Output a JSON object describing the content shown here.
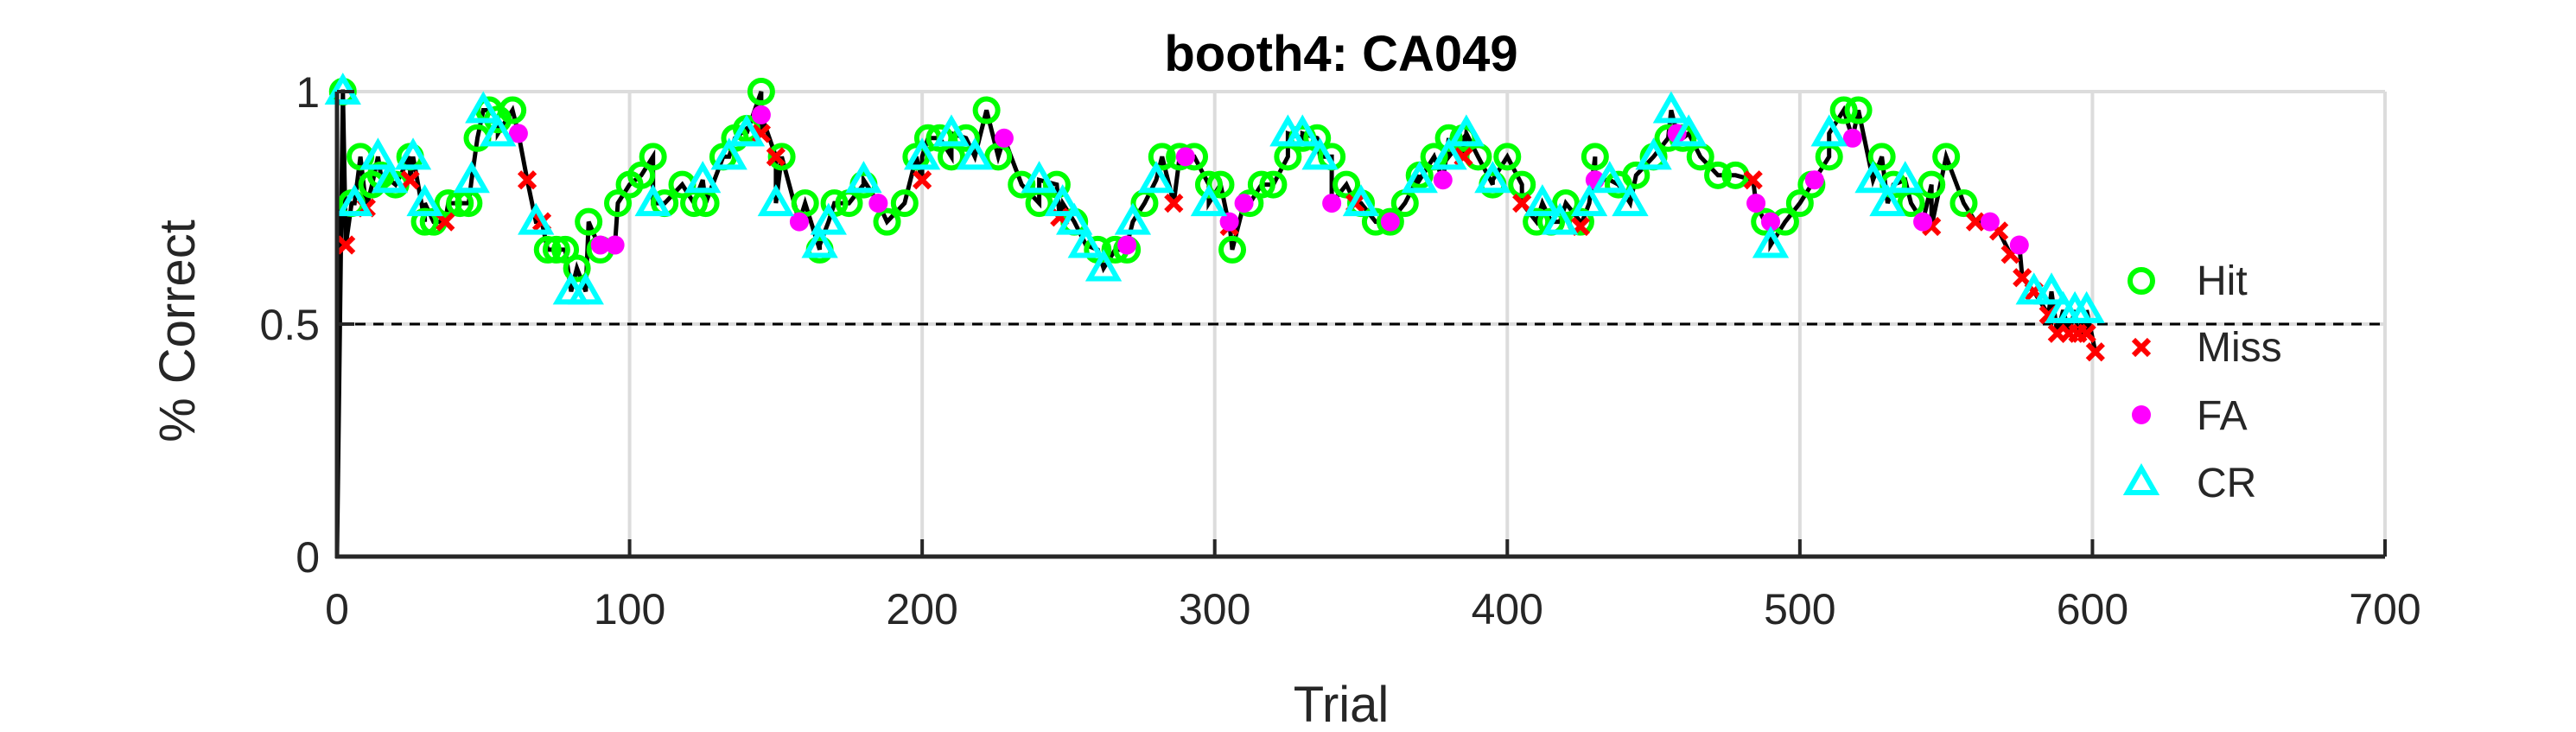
{
  "chart_data": {
    "type": "scatter",
    "title": "booth4: CA049",
    "xlabel": "Trial",
    "ylabel": "% Correct",
    "xlim": [
      0,
      700
    ],
    "ylim": [
      0,
      1
    ],
    "xticks": [
      0,
      100,
      200,
      300,
      400,
      500,
      600,
      700
    ],
    "yticks": [
      0,
      0.5,
      1
    ],
    "xtick_labels": [
      "0",
      "100",
      "200",
      "300",
      "400",
      "500",
      "600",
      "700"
    ],
    "ytick_labels": [
      "0",
      "0.5",
      "1"
    ],
    "grid": true,
    "legend_position": "right",
    "reference_line": {
      "y": 0.5,
      "style": "dashed",
      "color": "#000000"
    },
    "line_color": "#000000",
    "series": [
      {
        "name": "Hit",
        "marker": "circle-open",
        "color": "#00ff00",
        "x": [
          2,
          5,
          8,
          12,
          15,
          20,
          25,
          30,
          33,
          38,
          42,
          45,
          48,
          52,
          55,
          60,
          72,
          75,
          78,
          82,
          86,
          90,
          96,
          100,
          104,
          108,
          112,
          118,
          122,
          126,
          132,
          136,
          140,
          145,
          152,
          160,
          165,
          170,
          175,
          180,
          188,
          194,
          198,
          202,
          206,
          210,
          215,
          222,
          226,
          234,
          240,
          246,
          252,
          260,
          266,
          270,
          276,
          282,
          288,
          293,
          298,
          302,
          306,
          312,
          316,
          320,
          325,
          330,
          335,
          340,
          345,
          350,
          355,
          360,
          365,
          370,
          375,
          380,
          385,
          390,
          395,
          400,
          405,
          410,
          415,
          420,
          425,
          430,
          438,
          444,
          450,
          455,
          460,
          466,
          472,
          478,
          488,
          495,
          500,
          504,
          510,
          515,
          520,
          528,
          532,
          538,
          545,
          550,
          556
        ],
        "y": [
          1.0,
          0.76,
          0.86,
          0.8,
          0.82,
          0.8,
          0.86,
          0.72,
          0.72,
          0.76,
          0.76,
          0.76,
          0.9,
          0.96,
          0.94,
          0.96,
          0.66,
          0.66,
          0.66,
          0.62,
          0.72,
          0.66,
          0.76,
          0.8,
          0.82,
          0.86,
          0.76,
          0.8,
          0.76,
          0.76,
          0.86,
          0.9,
          0.92,
          1.0,
          0.86,
          0.76,
          0.66,
          0.76,
          0.76,
          0.8,
          0.72,
          0.76,
          0.86,
          0.9,
          0.9,
          0.86,
          0.9,
          0.96,
          0.86,
          0.8,
          0.76,
          0.8,
          0.72,
          0.66,
          0.66,
          0.66,
          0.76,
          0.86,
          0.86,
          0.86,
          0.8,
          0.8,
          0.66,
          0.76,
          0.8,
          0.8,
          0.86,
          0.9,
          0.9,
          0.86,
          0.8,
          0.76,
          0.72,
          0.72,
          0.76,
          0.82,
          0.86,
          0.9,
          0.9,
          0.86,
          0.8,
          0.86,
          0.8,
          0.72,
          0.72,
          0.76,
          0.72,
          0.86,
          0.8,
          0.82,
          0.86,
          0.9,
          0.9,
          0.86,
          0.82,
          0.82,
          0.72,
          0.72,
          0.76,
          0.8,
          0.86,
          0.96,
          0.96,
          0.86,
          0.8,
          0.76,
          0.8,
          0.86,
          0.76
        ]
      },
      {
        "name": "Miss",
        "marker": "x",
        "color": "#ff0000",
        "x": [
          3,
          10,
          25,
          37,
          65,
          70,
          145,
          150,
          200,
          247,
          286,
          305,
          348,
          385,
          405,
          425,
          484,
          545,
          560,
          568,
          572,
          576,
          580,
          585,
          588,
          592,
          595,
          598,
          601
        ],
        "y": [
          0.67,
          0.75,
          0.81,
          0.72,
          0.81,
          0.72,
          0.91,
          0.86,
          0.81,
          0.73,
          0.76,
          0.71,
          0.76,
          0.86,
          0.76,
          0.71,
          0.81,
          0.71,
          0.72,
          0.7,
          0.65,
          0.6,
          0.57,
          0.52,
          0.48,
          0.48,
          0.48,
          0.48,
          0.44
        ]
      },
      {
        "name": "FA",
        "marker": "circle-filled",
        "color": "#ff00ff",
        "x": [
          62,
          90,
          95,
          145,
          158,
          185,
          228,
          270,
          290,
          305,
          310,
          340,
          360,
          378,
          430,
          458,
          485,
          490,
          505,
          518,
          542,
          565,
          575
        ],
        "y": [
          0.91,
          0.67,
          0.67,
          0.95,
          0.72,
          0.76,
          0.9,
          0.67,
          0.86,
          0.72,
          0.76,
          0.76,
          0.72,
          0.81,
          0.81,
          0.91,
          0.76,
          0.72,
          0.81,
          0.9,
          0.72,
          0.72,
          0.67
        ]
      },
      {
        "name": "CR",
        "marker": "triangle-open",
        "color": "#00ffff",
        "x": [
          2,
          6,
          14,
          18,
          26,
          30,
          46,
          50,
          55,
          68,
          80,
          85,
          108,
          125,
          134,
          140,
          150,
          165,
          168,
          180,
          200,
          210,
          218,
          240,
          248,
          252,
          256,
          262,
          272,
          280,
          298,
          325,
          330,
          336,
          350,
          370,
          380,
          386,
          395,
          412,
          418,
          428,
          435,
          442,
          450,
          456,
          462,
          490,
          510,
          525,
          530,
          536,
          580,
          586,
          590,
          594,
          598
        ],
        "y": [
          1.0,
          0.76,
          0.86,
          0.81,
          0.86,
          0.76,
          0.81,
          0.96,
          0.91,
          0.72,
          0.57,
          0.57,
          0.76,
          0.81,
          0.86,
          0.91,
          0.76,
          0.67,
          0.72,
          0.81,
          0.86,
          0.91,
          0.86,
          0.81,
          0.76,
          0.72,
          0.67,
          0.62,
          0.72,
          0.81,
          0.76,
          0.91,
          0.91,
          0.86,
          0.76,
          0.81,
          0.86,
          0.91,
          0.81,
          0.76,
          0.72,
          0.76,
          0.81,
          0.76,
          0.86,
          0.96,
          0.91,
          0.67,
          0.91,
          0.81,
          0.76,
          0.81,
          0.57,
          0.57,
          0.53,
          0.53,
          0.53
        ]
      }
    ]
  }
}
